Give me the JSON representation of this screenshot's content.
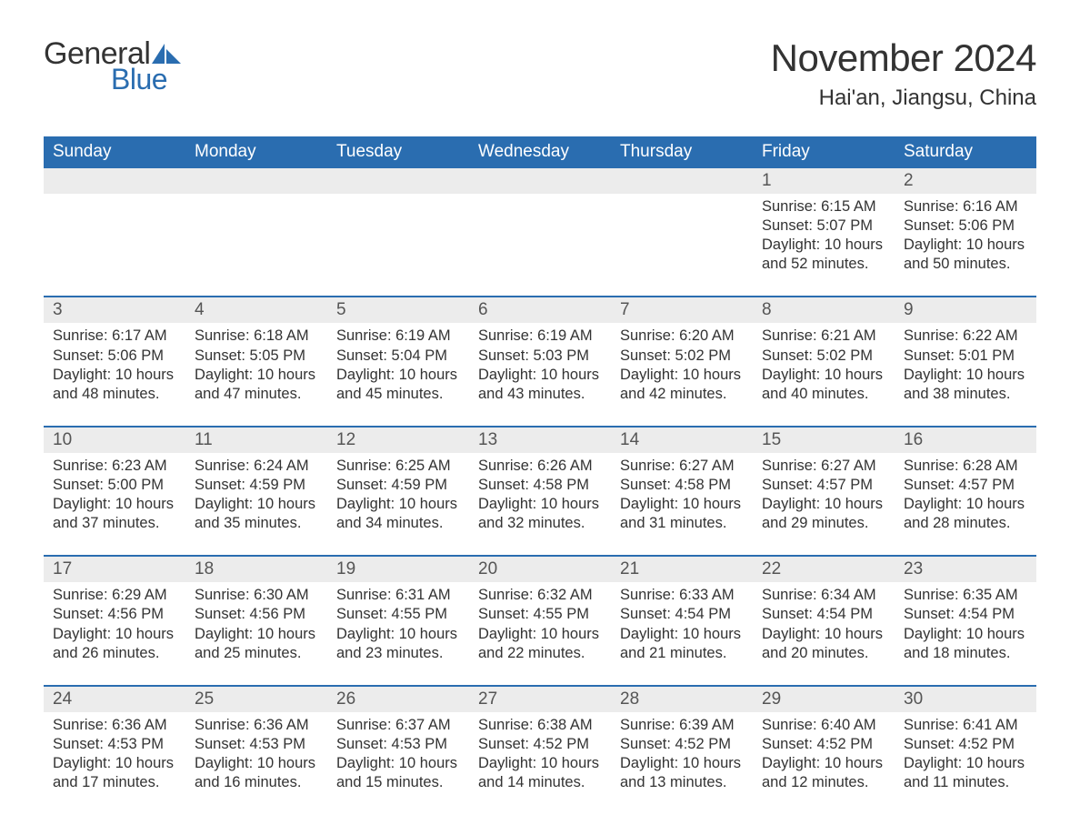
{
  "logo": {
    "text_general": "General",
    "text_blue": "Blue",
    "brand_color": "#2a6db0"
  },
  "header": {
    "month_title": "November 2024",
    "location": "Hai'an, Jiangsu, China"
  },
  "colors": {
    "header_bg": "#2a6db0",
    "header_text": "#ffffff",
    "daynum_band_bg": "#ececec",
    "text": "#333333",
    "week_divider": "#2a6db0",
    "background": "#ffffff"
  },
  "typography": {
    "month_title_pt": 42,
    "location_pt": 24,
    "dow_pt": 19,
    "daynum_pt": 19,
    "cell_pt": 16.5,
    "logo_pt": 34
  },
  "days_of_week": [
    "Sunday",
    "Monday",
    "Tuesday",
    "Wednesday",
    "Thursday",
    "Friday",
    "Saturday"
  ],
  "weeks": [
    [
      null,
      null,
      null,
      null,
      null,
      {
        "day": "1",
        "sunrise": "Sunrise: 6:15 AM",
        "sunset": "Sunset: 5:07 PM",
        "daylight1": "Daylight: 10 hours",
        "daylight2": "and 52 minutes."
      },
      {
        "day": "2",
        "sunrise": "Sunrise: 6:16 AM",
        "sunset": "Sunset: 5:06 PM",
        "daylight1": "Daylight: 10 hours",
        "daylight2": "and 50 minutes."
      }
    ],
    [
      {
        "day": "3",
        "sunrise": "Sunrise: 6:17 AM",
        "sunset": "Sunset: 5:06 PM",
        "daylight1": "Daylight: 10 hours",
        "daylight2": "and 48 minutes."
      },
      {
        "day": "4",
        "sunrise": "Sunrise: 6:18 AM",
        "sunset": "Sunset: 5:05 PM",
        "daylight1": "Daylight: 10 hours",
        "daylight2": "and 47 minutes."
      },
      {
        "day": "5",
        "sunrise": "Sunrise: 6:19 AM",
        "sunset": "Sunset: 5:04 PM",
        "daylight1": "Daylight: 10 hours",
        "daylight2": "and 45 minutes."
      },
      {
        "day": "6",
        "sunrise": "Sunrise: 6:19 AM",
        "sunset": "Sunset: 5:03 PM",
        "daylight1": "Daylight: 10 hours",
        "daylight2": "and 43 minutes."
      },
      {
        "day": "7",
        "sunrise": "Sunrise: 6:20 AM",
        "sunset": "Sunset: 5:02 PM",
        "daylight1": "Daylight: 10 hours",
        "daylight2": "and 42 minutes."
      },
      {
        "day": "8",
        "sunrise": "Sunrise: 6:21 AM",
        "sunset": "Sunset: 5:02 PM",
        "daylight1": "Daylight: 10 hours",
        "daylight2": "and 40 minutes."
      },
      {
        "day": "9",
        "sunrise": "Sunrise: 6:22 AM",
        "sunset": "Sunset: 5:01 PM",
        "daylight1": "Daylight: 10 hours",
        "daylight2": "and 38 minutes."
      }
    ],
    [
      {
        "day": "10",
        "sunrise": "Sunrise: 6:23 AM",
        "sunset": "Sunset: 5:00 PM",
        "daylight1": "Daylight: 10 hours",
        "daylight2": "and 37 minutes."
      },
      {
        "day": "11",
        "sunrise": "Sunrise: 6:24 AM",
        "sunset": "Sunset: 4:59 PM",
        "daylight1": "Daylight: 10 hours",
        "daylight2": "and 35 minutes."
      },
      {
        "day": "12",
        "sunrise": "Sunrise: 6:25 AM",
        "sunset": "Sunset: 4:59 PM",
        "daylight1": "Daylight: 10 hours",
        "daylight2": "and 34 minutes."
      },
      {
        "day": "13",
        "sunrise": "Sunrise: 6:26 AM",
        "sunset": "Sunset: 4:58 PM",
        "daylight1": "Daylight: 10 hours",
        "daylight2": "and 32 minutes."
      },
      {
        "day": "14",
        "sunrise": "Sunrise: 6:27 AM",
        "sunset": "Sunset: 4:58 PM",
        "daylight1": "Daylight: 10 hours",
        "daylight2": "and 31 minutes."
      },
      {
        "day": "15",
        "sunrise": "Sunrise: 6:27 AM",
        "sunset": "Sunset: 4:57 PM",
        "daylight1": "Daylight: 10 hours",
        "daylight2": "and 29 minutes."
      },
      {
        "day": "16",
        "sunrise": "Sunrise: 6:28 AM",
        "sunset": "Sunset: 4:57 PM",
        "daylight1": "Daylight: 10 hours",
        "daylight2": "and 28 minutes."
      }
    ],
    [
      {
        "day": "17",
        "sunrise": "Sunrise: 6:29 AM",
        "sunset": "Sunset: 4:56 PM",
        "daylight1": "Daylight: 10 hours",
        "daylight2": "and 26 minutes."
      },
      {
        "day": "18",
        "sunrise": "Sunrise: 6:30 AM",
        "sunset": "Sunset: 4:56 PM",
        "daylight1": "Daylight: 10 hours",
        "daylight2": "and 25 minutes."
      },
      {
        "day": "19",
        "sunrise": "Sunrise: 6:31 AM",
        "sunset": "Sunset: 4:55 PM",
        "daylight1": "Daylight: 10 hours",
        "daylight2": "and 23 minutes."
      },
      {
        "day": "20",
        "sunrise": "Sunrise: 6:32 AM",
        "sunset": "Sunset: 4:55 PM",
        "daylight1": "Daylight: 10 hours",
        "daylight2": "and 22 minutes."
      },
      {
        "day": "21",
        "sunrise": "Sunrise: 6:33 AM",
        "sunset": "Sunset: 4:54 PM",
        "daylight1": "Daylight: 10 hours",
        "daylight2": "and 21 minutes."
      },
      {
        "day": "22",
        "sunrise": "Sunrise: 6:34 AM",
        "sunset": "Sunset: 4:54 PM",
        "daylight1": "Daylight: 10 hours",
        "daylight2": "and 20 minutes."
      },
      {
        "day": "23",
        "sunrise": "Sunrise: 6:35 AM",
        "sunset": "Sunset: 4:54 PM",
        "daylight1": "Daylight: 10 hours",
        "daylight2": "and 18 minutes."
      }
    ],
    [
      {
        "day": "24",
        "sunrise": "Sunrise: 6:36 AM",
        "sunset": "Sunset: 4:53 PM",
        "daylight1": "Daylight: 10 hours",
        "daylight2": "and 17 minutes."
      },
      {
        "day": "25",
        "sunrise": "Sunrise: 6:36 AM",
        "sunset": "Sunset: 4:53 PM",
        "daylight1": "Daylight: 10 hours",
        "daylight2": "and 16 minutes."
      },
      {
        "day": "26",
        "sunrise": "Sunrise: 6:37 AM",
        "sunset": "Sunset: 4:53 PM",
        "daylight1": "Daylight: 10 hours",
        "daylight2": "and 15 minutes."
      },
      {
        "day": "27",
        "sunrise": "Sunrise: 6:38 AM",
        "sunset": "Sunset: 4:52 PM",
        "daylight1": "Daylight: 10 hours",
        "daylight2": "and 14 minutes."
      },
      {
        "day": "28",
        "sunrise": "Sunrise: 6:39 AM",
        "sunset": "Sunset: 4:52 PM",
        "daylight1": "Daylight: 10 hours",
        "daylight2": "and 13 minutes."
      },
      {
        "day": "29",
        "sunrise": "Sunrise: 6:40 AM",
        "sunset": "Sunset: 4:52 PM",
        "daylight1": "Daylight: 10 hours",
        "daylight2": "and 12 minutes."
      },
      {
        "day": "30",
        "sunrise": "Sunrise: 6:41 AM",
        "sunset": "Sunset: 4:52 PM",
        "daylight1": "Daylight: 10 hours",
        "daylight2": "and 11 minutes."
      }
    ]
  ]
}
